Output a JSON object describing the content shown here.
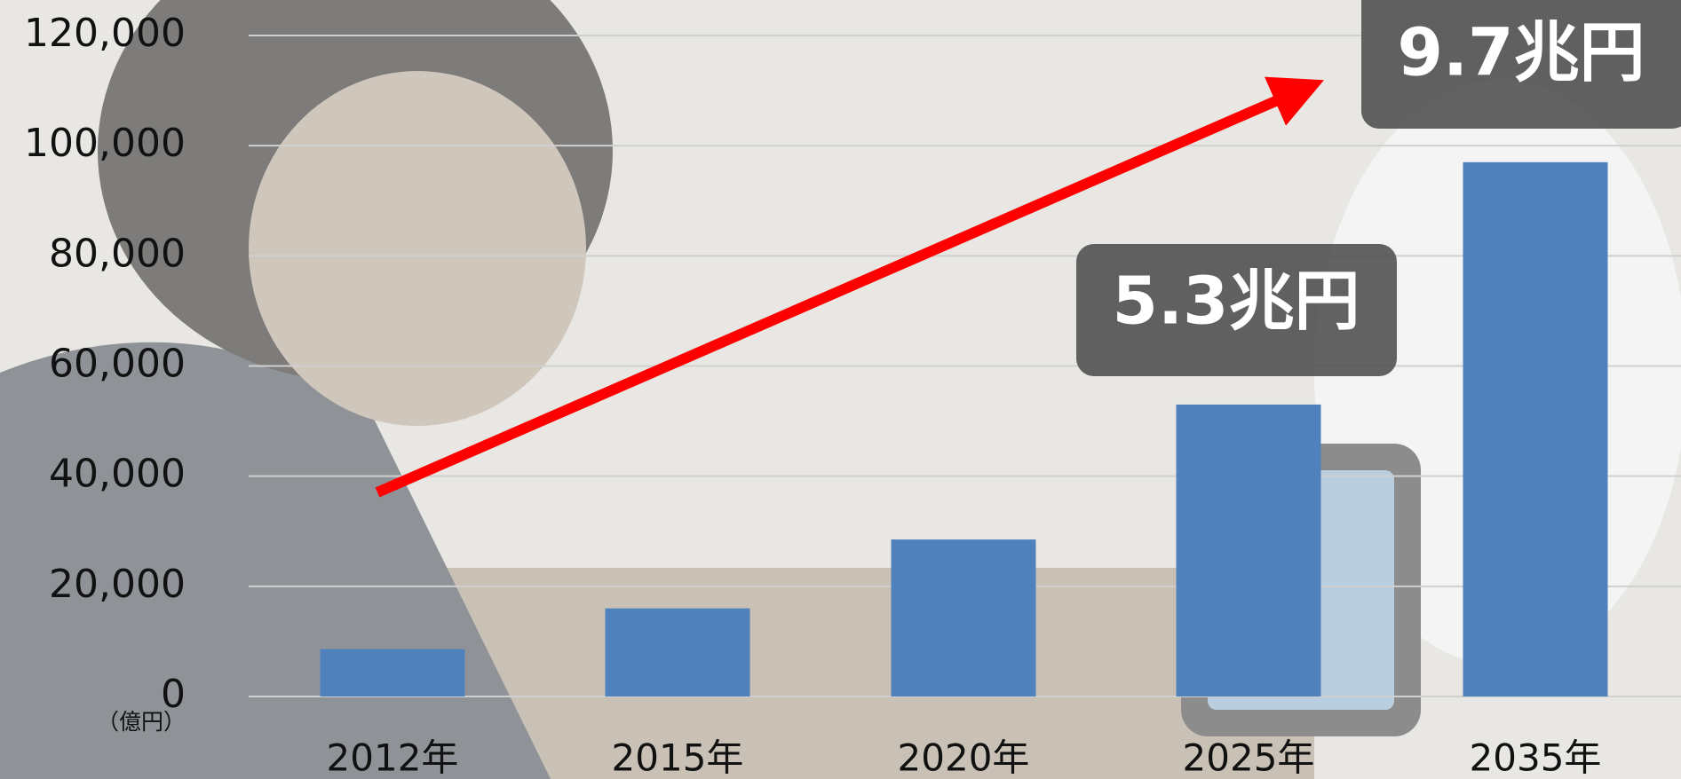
{
  "chart_data": {
    "type": "bar",
    "categories": [
      "2012年",
      "2015年",
      "2020年",
      "2025年",
      "2035年"
    ],
    "values": [
      8600,
      16000,
      28500,
      53000,
      97000
    ],
    "color": "#4f81bd",
    "ylim": [
      0,
      120000
    ],
    "yticks": [
      0,
      {
        "value": 20000,
        "label": "20,000"
      },
      {
        "value": 40000,
        "label": "40,000"
      },
      {
        "value": 60000,
        "label": "60,000"
      },
      {
        "value": 80000,
        "label": "80,000"
      },
      {
        "value": 100000,
        "label": "100,000"
      },
      {
        "value": 120000,
        "label": "120,000"
      }
    ],
    "grid": true,
    "unit_label": "（億円）",
    "annotations": [
      "5.3兆円",
      "9.7兆円"
    ]
  }
}
